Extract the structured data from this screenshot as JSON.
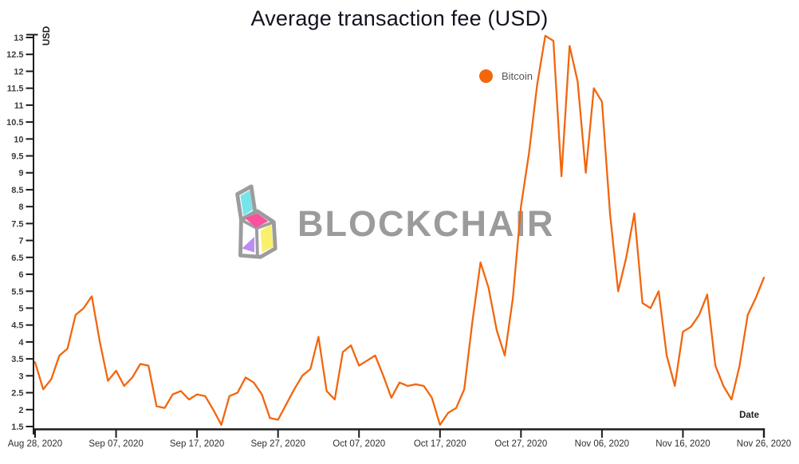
{
  "title": "Average transaction fee (USD)",
  "legend": {
    "label": "Bitcoin",
    "marker_color": "#f4660c"
  },
  "watermark": {
    "text": "BLOCKCHAIR",
    "color": "#9b9b9b"
  },
  "y_axis": {
    "title": "USD"
  },
  "x_axis": {
    "title": "Date"
  },
  "colors": {
    "series": "#f2660d",
    "axis": "#1c1c1c"
  },
  "chart_data": {
    "type": "line",
    "title": "Average transaction fee (USD)",
    "ylabel": "USD",
    "xlabel": "Date",
    "ylim": [
      1.5,
      13
    ],
    "y_tick_step": 0.5,
    "grid": false,
    "legend_position": "top-center",
    "x_tick_labels": [
      "Aug 28, 2020",
      "Sep 07, 2020",
      "Sep 17, 2020",
      "Sep 27, 2020",
      "Oct 07, 2020",
      "Oct 17, 2020",
      "Oct 27, 2020",
      "Nov 06, 2020",
      "Nov 16, 2020",
      "Nov 26, 2020"
    ],
    "x_tick_indices": [
      0,
      10,
      20,
      30,
      40,
      50,
      60,
      70,
      80,
      90
    ],
    "series": [
      {
        "name": "Bitcoin",
        "color": "#f2660d",
        "x": [
          "Aug 28",
          "Aug 29",
          "Aug 30",
          "Aug 31",
          "Sep 01",
          "Sep 02",
          "Sep 03",
          "Sep 04",
          "Sep 05",
          "Sep 06",
          "Sep 07",
          "Sep 08",
          "Sep 09",
          "Sep 10",
          "Sep 11",
          "Sep 12",
          "Sep 13",
          "Sep 14",
          "Sep 15",
          "Sep 16",
          "Sep 17",
          "Sep 18",
          "Sep 19",
          "Sep 20",
          "Sep 21",
          "Sep 22",
          "Sep 23",
          "Sep 24",
          "Sep 25",
          "Sep 26",
          "Sep 27",
          "Sep 28",
          "Sep 29",
          "Sep 30",
          "Oct 01",
          "Oct 02",
          "Oct 03",
          "Oct 04",
          "Oct 05",
          "Oct 06",
          "Oct 07",
          "Oct 08",
          "Oct 09",
          "Oct 10",
          "Oct 11",
          "Oct 12",
          "Oct 13",
          "Oct 14",
          "Oct 15",
          "Oct 16",
          "Oct 17",
          "Oct 18",
          "Oct 19",
          "Oct 20",
          "Oct 21",
          "Oct 22",
          "Oct 23",
          "Oct 24",
          "Oct 25",
          "Oct 26",
          "Oct 27",
          "Oct 28",
          "Oct 29",
          "Oct 30",
          "Oct 31",
          "Nov 01",
          "Nov 02",
          "Nov 03",
          "Nov 04",
          "Nov 05",
          "Nov 06",
          "Nov 07",
          "Nov 08",
          "Nov 09",
          "Nov 10",
          "Nov 11",
          "Nov 12",
          "Nov 13",
          "Nov 14",
          "Nov 15",
          "Nov 16",
          "Nov 17",
          "Nov 18",
          "Nov 19",
          "Nov 20",
          "Nov 21",
          "Nov 22",
          "Nov 23",
          "Nov 24",
          "Nov 25",
          "Nov 26"
        ],
        "values": [
          3.4,
          2.6,
          2.9,
          3.6,
          3.8,
          4.8,
          5.0,
          5.35,
          4.0,
          2.85,
          3.15,
          2.7,
          2.95,
          3.35,
          3.3,
          2.1,
          2.05,
          2.45,
          2.55,
          2.3,
          2.45,
          2.4,
          2.0,
          1.55,
          2.4,
          2.5,
          2.95,
          2.8,
          2.45,
          1.75,
          1.7,
          2.15,
          2.6,
          3.0,
          3.2,
          4.15,
          2.55,
          2.3,
          3.7,
          3.9,
          3.3,
          3.45,
          3.6,
          3.0,
          2.35,
          2.8,
          2.7,
          2.75,
          2.7,
          2.35,
          1.55,
          1.9,
          2.05,
          2.6,
          4.6,
          6.35,
          5.6,
          4.35,
          3.6,
          5.3,
          8.0,
          9.6,
          11.6,
          13.05,
          12.9,
          8.9,
          12.75,
          11.7,
          9.0,
          11.5,
          11.1,
          7.8,
          5.5,
          6.5,
          7.8,
          5.15,
          5.0,
          5.5,
          3.6,
          2.7,
          4.3,
          4.45,
          4.8,
          5.4,
          3.3,
          2.7,
          2.3,
          3.3,
          4.8,
          5.3,
          5.9
        ]
      }
    ]
  }
}
